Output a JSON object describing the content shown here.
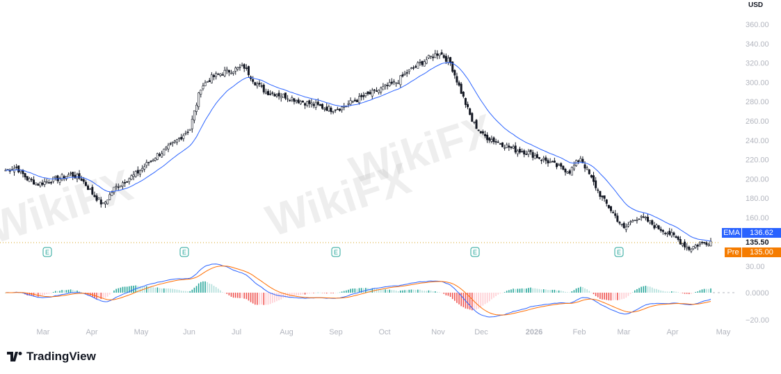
{
  "watermark": "WikiFX",
  "chart_data": {
    "type": "candlestick",
    "currency": "USD",
    "x_labels": [
      "Mar",
      "Apr",
      "May",
      "Jun",
      "Jul",
      "Aug",
      "Sep",
      "Oct",
      "Nov",
      "Dec",
      "2026",
      "Feb",
      "Mar",
      "Apr",
      "May"
    ],
    "weekly_close": [
      209,
      212,
      200,
      195,
      198,
      201,
      205,
      200,
      185,
      173,
      190,
      198,
      205,
      215,
      225,
      232,
      242,
      252,
      295,
      305,
      310,
      313,
      316,
      300,
      290,
      288,
      285,
      281,
      278,
      275,
      272,
      274,
      280,
      285,
      290,
      295,
      300,
      310,
      318,
      325,
      331,
      320,
      290,
      260,
      245,
      240,
      235,
      230,
      228,
      223,
      218,
      212,
      208,
      222,
      200,
      180,
      165,
      148,
      160,
      158,
      150,
      145,
      137,
      128,
      133,
      135.5
    ],
    "price_ticks": [
      360,
      340,
      320,
      300,
      280,
      260,
      240,
      220,
      200,
      180,
      160
    ],
    "macd_ticks": [
      "30.00",
      "0.0000",
      "−20.00"
    ],
    "ema_label": "EMA",
    "ema_value": "136.62",
    "last_price": "135.50",
    "pre_label": "Pre",
    "pre_value": "135.00",
    "earnings_marker": "E",
    "earnings_count": 5,
    "colors": {
      "ema": "#2962ff",
      "macd": "#2962ff",
      "signal": "#ff6d00",
      "hist_up": "#26a69a",
      "hist_down": "#ef5350",
      "pre": "#f57c00"
    }
  },
  "branding": {
    "name": "TradingView"
  }
}
